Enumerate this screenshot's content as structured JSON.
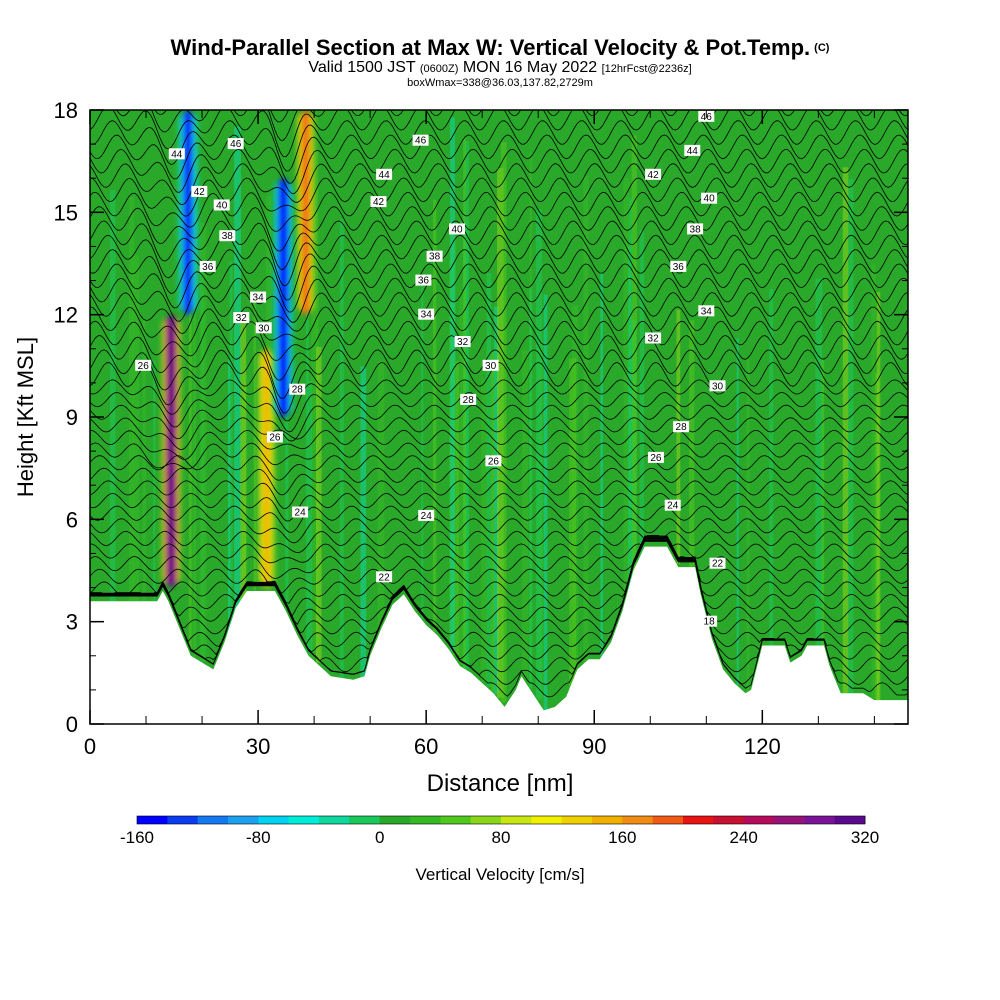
{
  "title": {
    "main": "Wind-Parallel Section at Max W: Vertical Velocity & Pot.Temp.",
    "copyright": "(C)",
    "valid_prefix": "Valid 1500 JST",
    "valid_utc": "(0600Z)",
    "valid_date": "MON 16 May 2022",
    "forecast": "[12hrFcst@2236z]",
    "box_info": "boxWmax=338@36.03,137.82,2729m"
  },
  "colors": {
    "field_base": "#2aa82a",
    "terrain": "#ffffff",
    "contour": "#000000",
    "colorbar": [
      "#0000ff",
      "#0a3cf0",
      "#1478f0",
      "#1ea0f0",
      "#00d2f0",
      "#00eed8",
      "#10d6a0",
      "#1bc85a",
      "#2aa82a",
      "#34b824",
      "#52c81e",
      "#8ad61a",
      "#c8e614",
      "#f0f000",
      "#f0d000",
      "#f0b000",
      "#f08c14",
      "#f05a14",
      "#e81414",
      "#c81030",
      "#b40c5a",
      "#961478",
      "#7a1496",
      "#5a0a8c"
    ]
  },
  "chart_data": {
    "type": "heatmap",
    "xlabel": "Distance [nm]",
    "ylabel": "Height [Kft MSL]",
    "xlim": [
      0,
      146
    ],
    "ylim": [
      0,
      18
    ],
    "xticks": [
      0,
      30,
      60,
      90,
      120
    ],
    "xtick_labels": [
      "0",
      "30",
      "60",
      "90",
      "120"
    ],
    "yticks": [
      0,
      3,
      6,
      9,
      12,
      15,
      18
    ],
    "ytick_labels": [
      "0",
      "3",
      "6",
      "9",
      "12",
      "15",
      "18"
    ],
    "colorbar": {
      "label": "Vertical Velocity [cm/s]",
      "range": [
        -160,
        320
      ],
      "tick_values": [
        -160,
        -80,
        0,
        80,
        160,
        240,
        320
      ],
      "tick_labels": [
        "-160",
        "-80",
        "0",
        "80",
        "160",
        "240",
        "320"
      ]
    },
    "terrain": [
      [
        0,
        3.6
      ],
      [
        12,
        3.6
      ],
      [
        13,
        3.9
      ],
      [
        14,
        3.6
      ],
      [
        15,
        3.2
      ],
      [
        17,
        2.4
      ],
      [
        18,
        2.0
      ],
      [
        20,
        1.8
      ],
      [
        22,
        1.6
      ],
      [
        24,
        2.4
      ],
      [
        26,
        3.4
      ],
      [
        28,
        3.9
      ],
      [
        33,
        3.9
      ],
      [
        35,
        3.3
      ],
      [
        37,
        2.6
      ],
      [
        39,
        2.0
      ],
      [
        41,
        1.7
      ],
      [
        43,
        1.4
      ],
      [
        47,
        1.3
      ],
      [
        49,
        1.4
      ],
      [
        50,
        2.0
      ],
      [
        52,
        2.8
      ],
      [
        54,
        3.5
      ],
      [
        56,
        3.8
      ],
      [
        58,
        3.3
      ],
      [
        60,
        2.9
      ],
      [
        62,
        2.6
      ],
      [
        64,
        2.2
      ],
      [
        66,
        1.7
      ],
      [
        68,
        1.5
      ],
      [
        70,
        1.2
      ],
      [
        72,
        0.9
      ],
      [
        74,
        0.5
      ],
      [
        76,
        1.0
      ],
      [
        77,
        1.4
      ],
      [
        79,
        0.9
      ],
      [
        81,
        0.4
      ],
      [
        83,
        0.5
      ],
      [
        85,
        0.8
      ],
      [
        87,
        1.6
      ],
      [
        89,
        1.9
      ],
      [
        91,
        1.9
      ],
      [
        93,
        2.4
      ],
      [
        95,
        3.3
      ],
      [
        97,
        4.5
      ],
      [
        99,
        5.2
      ],
      [
        103,
        5.2
      ],
      [
        105,
        4.6
      ],
      [
        108,
        4.6
      ],
      [
        109,
        3.8
      ],
      [
        111,
        2.5
      ],
      [
        113,
        1.6
      ],
      [
        115,
        1.2
      ],
      [
        117,
        0.9
      ],
      [
        118,
        1.0
      ],
      [
        120,
        2.3
      ],
      [
        124,
        2.3
      ],
      [
        125,
        1.8
      ],
      [
        127,
        2.0
      ],
      [
        128,
        2.3
      ],
      [
        131,
        2.3
      ],
      [
        132,
        1.7
      ],
      [
        133,
        1.3
      ],
      [
        134,
        0.9
      ],
      [
        138,
        0.9
      ],
      [
        140,
        0.7
      ],
      [
        146,
        0.7
      ]
    ],
    "contour_labels": [
      {
        "x": 9.5,
        "y": 10.5,
        "text": "26"
      },
      {
        "x": 15.5,
        "y": 16.7,
        "text": "44"
      },
      {
        "x": 26,
        "y": 17.0,
        "text": "46"
      },
      {
        "x": 19.5,
        "y": 15.6,
        "text": "42"
      },
      {
        "x": 23.5,
        "y": 15.2,
        "text": "40"
      },
      {
        "x": 24.5,
        "y": 14.3,
        "text": "38"
      },
      {
        "x": 21,
        "y": 13.4,
        "text": "36"
      },
      {
        "x": 30,
        "y": 12.5,
        "text": "34"
      },
      {
        "x": 27,
        "y": 11.9,
        "text": "32"
      },
      {
        "x": 31,
        "y": 11.6,
        "text": "30"
      },
      {
        "x": 37,
        "y": 9.8,
        "text": "28"
      },
      {
        "x": 33,
        "y": 8.4,
        "text": "26"
      },
      {
        "x": 37.5,
        "y": 6.2,
        "text": "24"
      },
      {
        "x": 59,
        "y": 17.1,
        "text": "46"
      },
      {
        "x": 52.5,
        "y": 16.1,
        "text": "44"
      },
      {
        "x": 51.5,
        "y": 15.3,
        "text": "42"
      },
      {
        "x": 65.5,
        "y": 14.5,
        "text": "40"
      },
      {
        "x": 61.5,
        "y": 13.7,
        "text": "38"
      },
      {
        "x": 59.5,
        "y": 13.0,
        "text": "36"
      },
      {
        "x": 60,
        "y": 12.0,
        "text": "34"
      },
      {
        "x": 66.5,
        "y": 11.2,
        "text": "32"
      },
      {
        "x": 71.5,
        "y": 10.5,
        "text": "30"
      },
      {
        "x": 67.5,
        "y": 9.5,
        "text": "28"
      },
      {
        "x": 72,
        "y": 7.7,
        "text": "26"
      },
      {
        "x": 60,
        "y": 6.1,
        "text": "24"
      },
      {
        "x": 52.5,
        "y": 4.3,
        "text": "22"
      },
      {
        "x": 110,
        "y": 17.8,
        "text": "46"
      },
      {
        "x": 107.5,
        "y": 16.8,
        "text": "44"
      },
      {
        "x": 100.5,
        "y": 16.1,
        "text": "42"
      },
      {
        "x": 110.5,
        "y": 15.4,
        "text": "40"
      },
      {
        "x": 108,
        "y": 14.5,
        "text": "38"
      },
      {
        "x": 105,
        "y": 13.4,
        "text": "36"
      },
      {
        "x": 110,
        "y": 12.1,
        "text": "34"
      },
      {
        "x": 100.5,
        "y": 11.3,
        "text": "32"
      },
      {
        "x": 112,
        "y": 9.9,
        "text": "30"
      },
      {
        "x": 105.5,
        "y": 8.7,
        "text": "28"
      },
      {
        "x": 101,
        "y": 7.8,
        "text": "26"
      },
      {
        "x": 104,
        "y": 6.4,
        "text": "24"
      },
      {
        "x": 112,
        "y": 4.7,
        "text": "22"
      },
      {
        "x": 110.5,
        "y": 3.0,
        "text": "18"
      }
    ],
    "updraft_cores": [
      {
        "x": 14.5,
        "bottom": 4.0,
        "top": 12.0,
        "peak": 338
      },
      {
        "x": 31.5,
        "bottom": 4.0,
        "top": 11.0,
        "peak": 140
      },
      {
        "x": 38.5,
        "bottom": 12.0,
        "top": 18.0,
        "peak": 180
      }
    ],
    "downdraft_cores": [
      {
        "x": 17.5,
        "bottom": 12.0,
        "top": 18.0,
        "peak": -150
      },
      {
        "x": 34.5,
        "bottom": 9.0,
        "top": 16.0,
        "peak": -160
      }
    ]
  }
}
